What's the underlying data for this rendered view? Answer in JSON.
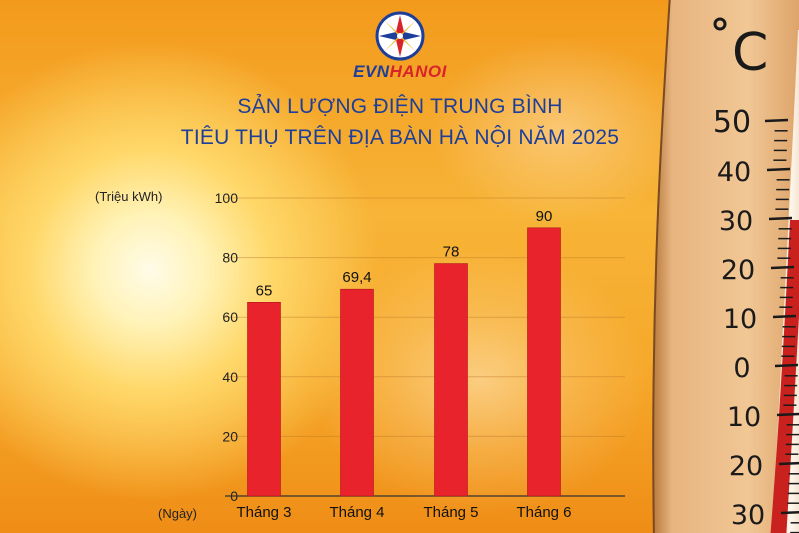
{
  "brand": {
    "part1": "EVN",
    "part2": "HANOI"
  },
  "title": {
    "line1": "SẢN LƯỢNG ĐIỆN TRUNG BÌNH",
    "line2": "TIÊU THỤ TRÊN ĐỊA BÀN HÀ NỘI NĂM 2025"
  },
  "colors": {
    "bar": "#e8232c",
    "title": "#1d3f9a",
    "brand_red": "#d8232a"
  },
  "icons": {
    "logo": "evn-star-logo-icon",
    "thermometer": "thermometer-illustration"
  },
  "thermometer": {
    "unit": "C",
    "scale": [
      "50",
      "40",
      "30",
      "20",
      "10",
      "0",
      "10",
      "20",
      "30"
    ]
  },
  "chart_data": {
    "type": "bar",
    "title": "SẢN LƯỢNG ĐIỆN TRUNG BÌNH TIÊU THỤ TRÊN ĐỊA BÀN HÀ NỘI NĂM 2025",
    "ylabel": "(Triệu kWh)",
    "xlabel": "(Ngày)",
    "categories": [
      "Tháng 3",
      "Tháng 4",
      "Tháng 5",
      "Tháng 6"
    ],
    "values": [
      65,
      69.4,
      78,
      90
    ],
    "value_labels": [
      "65",
      "69,4",
      "78",
      "90"
    ],
    "ylim": [
      0,
      100
    ],
    "yticks": [
      0,
      20,
      40,
      60,
      80,
      100
    ],
    "grid": true,
    "legend": "none"
  }
}
